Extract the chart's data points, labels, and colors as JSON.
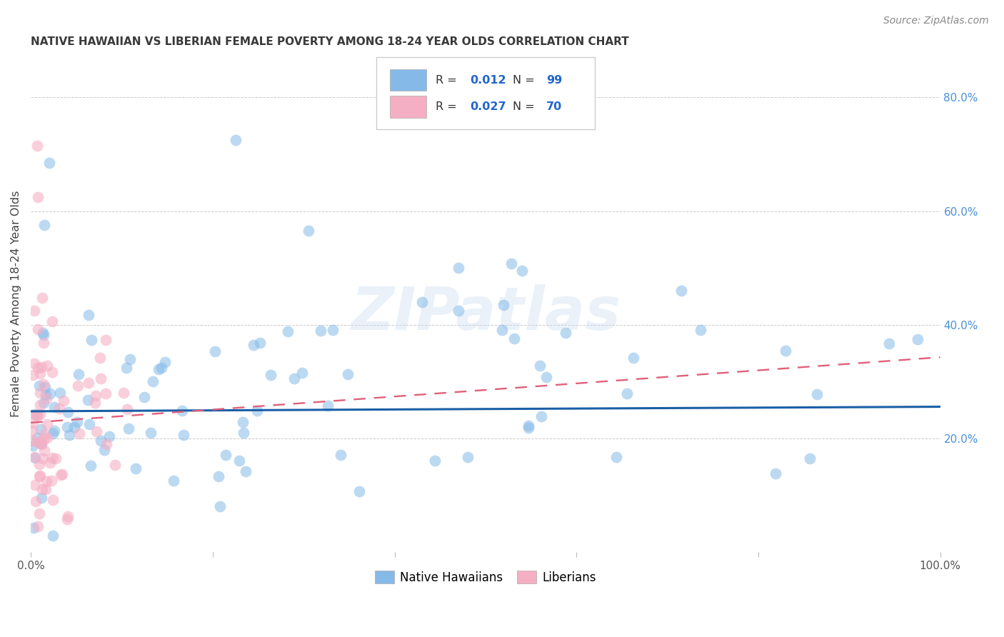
{
  "title": "NATIVE HAWAIIAN VS LIBERIAN FEMALE POVERTY AMONG 18-24 YEAR OLDS CORRELATION CHART",
  "source": "Source: ZipAtlas.com",
  "ylabel": "Female Poverty Among 18-24 Year Olds",
  "xlim": [
    0,
    1.0
  ],
  "ylim": [
    0,
    0.875
  ],
  "ytick_vals": [
    0.2,
    0.4,
    0.6,
    0.8
  ],
  "ytick_labels": [
    "20.0%",
    "40.0%",
    "60.0%",
    "80.0%"
  ],
  "xtick_vals": [
    0.0,
    0.2,
    0.4,
    0.6,
    0.8,
    1.0
  ],
  "xtick_labels": [
    "0.0%",
    "",
    "",
    "",
    "",
    "100.0%"
  ],
  "blue_color": "#85bae8",
  "pink_color": "#f5afc4",
  "blue_line_color": "#1a5fa6",
  "pink_line_color": "#e0607a",
  "legend_label1": "Native Hawaiians",
  "legend_label2": "Liberians",
  "watermark": "ZIPatlas",
  "title_color": "#3a3a3a",
  "source_color": "#888888",
  "grid_color": "#cccccc",
  "right_axis_color": "#4a90d9",
  "tick_label_color": "#555555",
  "legend_text_color": "#333333",
  "legend_value_color": "#2266cc"
}
